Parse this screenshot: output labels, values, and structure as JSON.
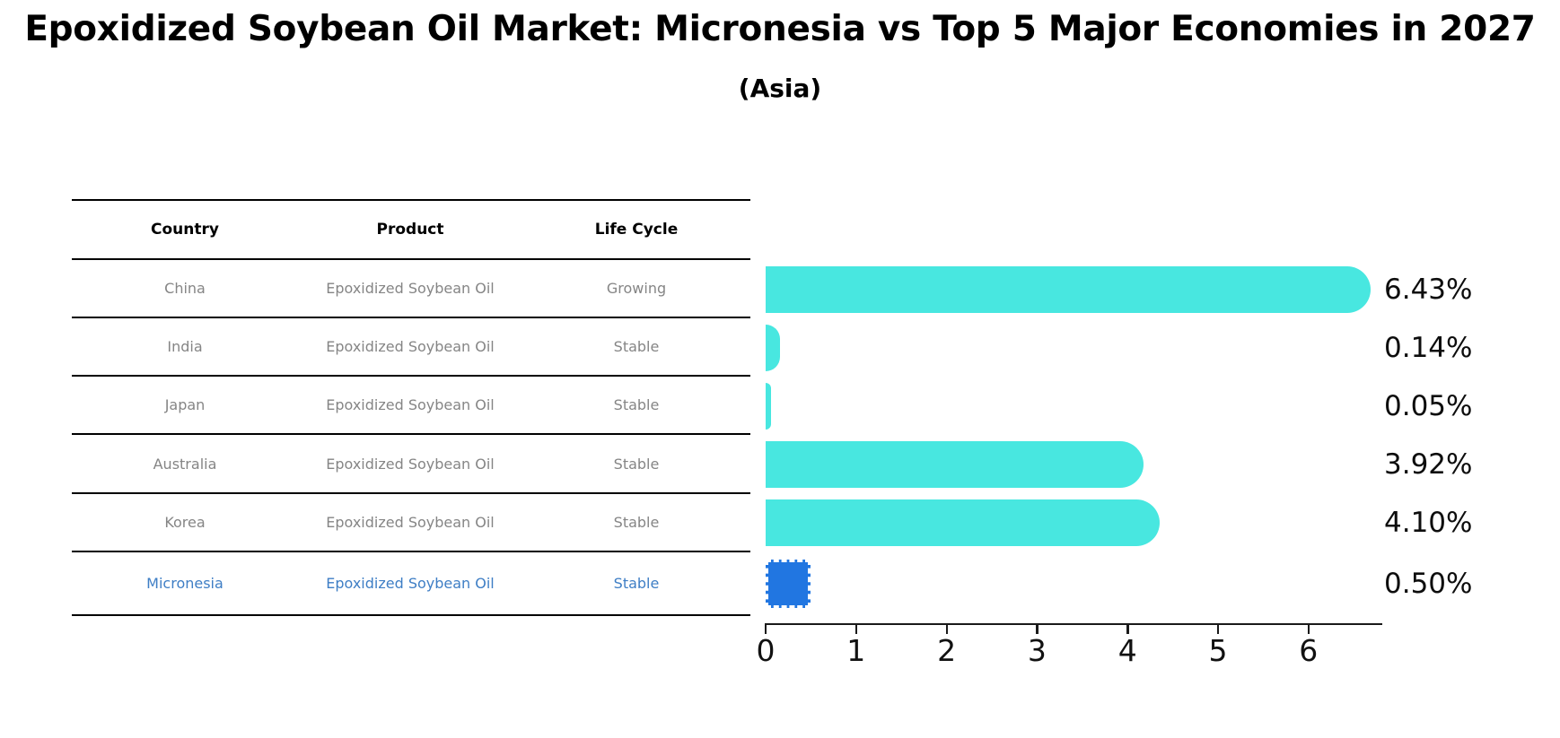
{
  "header": {
    "title": "Epoxidized Soybean Oil Market: Micronesia vs Top 5 Major Economies in 2027",
    "subtitle": "(Asia)"
  },
  "table": {
    "columns": [
      "Country",
      "Product",
      "Life Cycle"
    ],
    "rows": [
      {
        "country": "China",
        "product": "Epoxidized Soybean Oil",
        "life_cycle": "Growing",
        "highlighted": false
      },
      {
        "country": "India",
        "product": "Epoxidized Soybean Oil",
        "life_cycle": "Stable",
        "highlighted": false
      },
      {
        "country": "Japan",
        "product": "Epoxidized Soybean Oil",
        "life_cycle": "Stable",
        "highlighted": false
      },
      {
        "country": "Australia",
        "product": "Epoxidized Soybean Oil",
        "life_cycle": "Stable",
        "highlighted": false
      },
      {
        "country": "Korea",
        "product": "Epoxidized Soybean Oil",
        "life_cycle": "Stable",
        "highlighted": false
      },
      {
        "country": "Micronesia",
        "product": "Epoxidized Soybean Oil",
        "life_cycle": "Stable",
        "highlighted": true
      }
    ]
  },
  "chart_data": {
    "type": "bar",
    "orientation": "horizontal",
    "title": "Epoxidized Soybean Oil Market: Micronesia vs Top 5 Major Economies in 2027",
    "subtitle": "(Asia)",
    "categories": [
      "China",
      "India",
      "Japan",
      "Australia",
      "Korea",
      "Micronesia"
    ],
    "values": [
      6.43,
      0.14,
      0.05,
      3.92,
      4.1,
      0.5
    ],
    "value_labels": [
      "6.43%",
      "0.14%",
      "0.05%",
      "3.92%",
      "4.10%",
      "0.50%"
    ],
    "x_ticks": [
      0,
      1,
      2,
      3,
      4,
      5,
      6
    ],
    "xlim": [
      0,
      6.8
    ],
    "grid": false,
    "legend": false,
    "highlight_category": "Micronesia",
    "highlight_style": "dashed-border",
    "bar_colors": {
      "default": "#48e7e0",
      "highlight": "#2176e1"
    }
  },
  "colors": {
    "bar_default": "#48e7e0",
    "bar_highlight": "#2176e1",
    "highlight_text": "#3e7ec5",
    "table_text": "#858585",
    "axis": "#1a1a1a"
  }
}
